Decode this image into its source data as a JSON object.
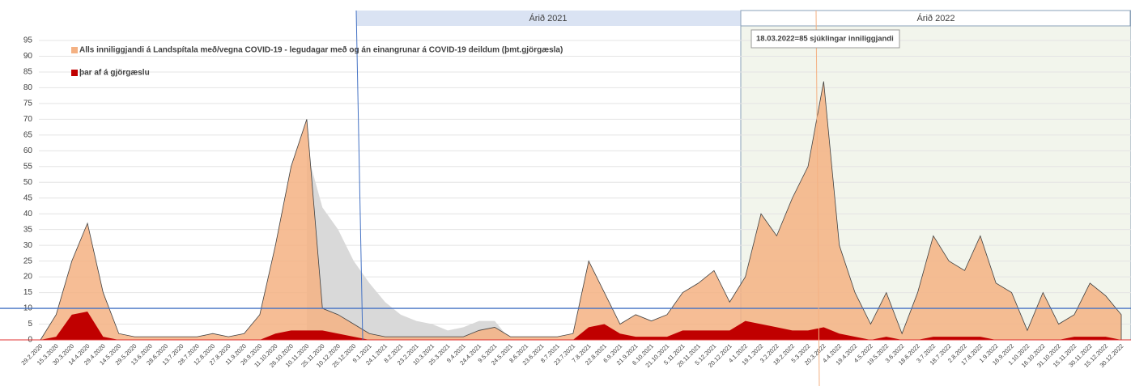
{
  "chart_data": {
    "type": "area",
    "annotations": [
      "Árið 2021",
      "Árið 2022",
      "18.03.2022=85 sjúklingar inniliggjandi"
    ],
    "categories": [
      "29.2.2020",
      "15.3.2020",
      "30.3.2020",
      "14.4.2020",
      "29.4.2020",
      "14.5.2020",
      "29.5.2020",
      "13.6.2020",
      "28.6.2020",
      "13.7.2020",
      "28.7.2020",
      "12.8.2020",
      "27.8.2020",
      "11.9.2020",
      "26.9.2020",
      "11.10.2020",
      "26.10.2020",
      "10.11.2020",
      "25.11.2020",
      "10.12.2020",
      "25.12.2020",
      "9.1.2021",
      "24.1.2021",
      "8.2.2021",
      "23.2.2021",
      "10.3.2021",
      "25.3.2021",
      "9.4.2021",
      "24.4.2021",
      "9.5.2021",
      "24.5.2021",
      "8.6.2021",
      "23.6.2021",
      "8.7.2021",
      "23.7.2021",
      "7.8.2021",
      "22.8.2021",
      "6.9.2021",
      "21.9.2021",
      "6.10.2021",
      "21.10.2021",
      "5.11.2021",
      "20.11.2021",
      "5.12.2021",
      "20.12.2021",
      "4.1.2022",
      "19.1.2022",
      "3.2.2022",
      "18.2.2022",
      "5.3.2022",
      "20.3.2022",
      "4.4.2022",
      "19.4.2022",
      "4.5.2022",
      "19.5.2022",
      "3.6.2022",
      "18.6.2022",
      "3.7.2022",
      "18.7.2022",
      "2.8.2022",
      "17.8.2022",
      "1.9.2022",
      "16.9.2022",
      "1.10.2022",
      "16.10.2022",
      "31.10.2022",
      "15.11.2022",
      "30.11.2022",
      "15.12.2022",
      "30.12.2022"
    ],
    "series": [
      {
        "color": "#d9d9d9",
        "values": [
          null,
          null,
          null,
          null,
          null,
          null,
          null,
          null,
          null,
          null,
          null,
          null,
          null,
          null,
          null,
          null,
          null,
          60,
          42,
          35,
          25,
          18,
          12,
          8,
          6,
          5,
          3,
          4,
          6,
          6,
          0,
          null,
          null,
          null,
          null,
          null,
          null,
          null,
          null,
          null,
          null,
          null,
          null,
          null,
          null,
          null,
          null,
          null,
          null,
          null,
          null,
          null,
          null,
          null,
          null,
          null,
          null,
          null,
          null,
          null,
          null,
          null,
          null,
          null,
          null,
          null,
          null,
          null,
          null,
          null
        ]
      },
      {
        "name": "Alls inniliggjandi á Landspítala með/vegna COVID-19 - legudagar með og án einangrunar á COVID-19 deildum (þmt.gjörgæsla)",
        "color": "#f4b183",
        "values": [
          0,
          8,
          25,
          37,
          15,
          2,
          1,
          1,
          1,
          1,
          1,
          2,
          1,
          2,
          8,
          30,
          55,
          70,
          10,
          8,
          5,
          2,
          1,
          1,
          1,
          1,
          1,
          1,
          3,
          4,
          1,
          1,
          1,
          1,
          2,
          25,
          15,
          5,
          8,
          6,
          8,
          15,
          18,
          22,
          12,
          20,
          40,
          33,
          45,
          55,
          82,
          30,
          15,
          5,
          15,
          2,
          15,
          33,
          25,
          22,
          33,
          18,
          15,
          3,
          15,
          5,
          8,
          18,
          14,
          8
        ]
      },
      {
        "name": "þar af á gjörgæslu",
        "color": "#c00000",
        "values": [
          0,
          1,
          8,
          9,
          1,
          0,
          0,
          0,
          0,
          0,
          0,
          0,
          0,
          0,
          0,
          2,
          3,
          3,
          3,
          2,
          1,
          0,
          0,
          0,
          0,
          0,
          0,
          0,
          0,
          0,
          0,
          0,
          0,
          0,
          0,
          4,
          5,
          2,
          1,
          1,
          1,
          3,
          3,
          3,
          3,
          6,
          5,
          4,
          3,
          3,
          4,
          2,
          1,
          0,
          1,
          0,
          0,
          1,
          1,
          1,
          1,
          0,
          0,
          0,
          0,
          0,
          1,
          1,
          1,
          0
        ]
      }
    ],
    "reference_line": 10,
    "ylim": [
      0,
      95
    ],
    "yticks": [
      0,
      5,
      10,
      15,
      20,
      25,
      30,
      35,
      40,
      45,
      50,
      55,
      60,
      65,
      70,
      75,
      80,
      85,
      90,
      95
    ],
    "grid": true
  }
}
